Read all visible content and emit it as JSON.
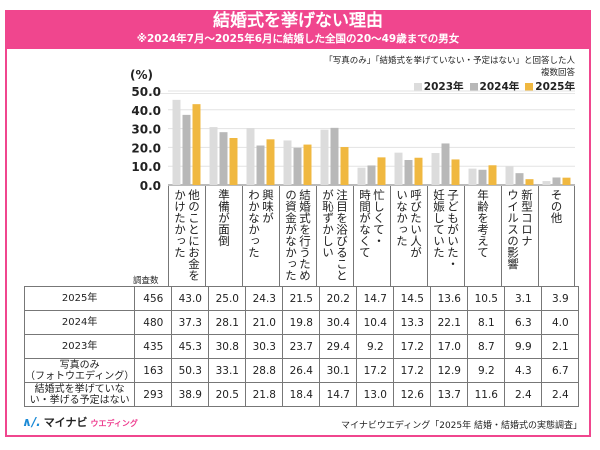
{
  "header": {
    "title": "結婚式を挙げない理由",
    "subtitle": "※2024年7月～2025年6月に結婚した全国の20～49歳までの男女"
  },
  "note": {
    "line1": "「写真のみ」「結婚式を挙げていない・予定はない」と回答した人",
    "line2": "複数回答"
  },
  "colors": {
    "brand": "#f0468e",
    "s2023": "#dcdcdc",
    "s2024": "#b8b8b8",
    "s2025": "#f0b840"
  },
  "chart_data": {
    "type": "bar",
    "title": "結婚式を挙げない理由",
    "ylabel": "(%)",
    "ylim": [
      0,
      50
    ],
    "yticks": [
      "0.0",
      "10.0",
      "20.0",
      "30.0",
      "40.0",
      "50.0"
    ],
    "grid": true,
    "legend_position": "top-right",
    "categories": [
      "他のことにお金を\nかけたかった",
      "準備が面倒",
      "興味が\nわかなかった",
      "結婚式を行うため\nの資金がなかった",
      "注目を浴びること\nが恥ずかしい",
      "忙しくて・\n時間がなくて",
      "呼びたい人が\nいなかった",
      "子どもがいた・\n妊娠していた",
      "年齢を考えて",
      "新型コロナ\nウイルスの影響",
      "その他"
    ],
    "series": [
      {
        "name": "2023年",
        "values": [
          45.3,
          30.8,
          30.3,
          23.7,
          29.4,
          9.2,
          17.2,
          17.0,
          8.7,
          9.9,
          2.1
        ]
      },
      {
        "name": "2024年",
        "values": [
          37.3,
          28.1,
          21.0,
          19.8,
          30.4,
          10.4,
          13.3,
          22.1,
          8.1,
          6.3,
          4.0
        ]
      },
      {
        "name": "2025年",
        "values": [
          43.0,
          25.0,
          24.3,
          21.5,
          20.2,
          14.7,
          14.5,
          13.6,
          10.5,
          3.1,
          3.9
        ]
      }
    ]
  },
  "table": {
    "sample_header": "調査数",
    "rows": [
      {
        "label": "2025年",
        "n": "456",
        "values": [
          "43.0",
          "25.0",
          "24.3",
          "21.5",
          "20.2",
          "14.7",
          "14.5",
          "13.6",
          "10.5",
          "3.1",
          "3.9"
        ]
      },
      {
        "label": "2024年",
        "n": "480",
        "values": [
          "37.3",
          "28.1",
          "21.0",
          "19.8",
          "30.4",
          "10.4",
          "13.3",
          "22.1",
          "8.1",
          "6.3",
          "4.0"
        ]
      },
      {
        "label": "2023年",
        "n": "435",
        "values": [
          "45.3",
          "30.8",
          "30.3",
          "23.7",
          "29.4",
          "9.2",
          "17.2",
          "17.0",
          "8.7",
          "9.9",
          "2.1"
        ]
      },
      {
        "label": "写真のみ\n（フォトウエディング）",
        "n": "163",
        "values": [
          "50.3",
          "33.1",
          "28.8",
          "26.4",
          "30.1",
          "17.2",
          "17.2",
          "12.9",
          "9.2",
          "4.3",
          "6.7"
        ]
      },
      {
        "label": "結婚式を挙げていな\nい・挙げる予定はない",
        "n": "293",
        "values": [
          "38.9",
          "20.5",
          "21.8",
          "18.4",
          "14.7",
          "13.0",
          "12.6",
          "13.7",
          "11.6",
          "2.4",
          "2.4"
        ]
      }
    ]
  },
  "footer": {
    "logo_mark": "∧/.",
    "logo_brand": "マイナビ",
    "logo_sub": "ウエディング",
    "source": "マイナビウエディング「2025年 結婚・結婚式の実態調査」"
  }
}
